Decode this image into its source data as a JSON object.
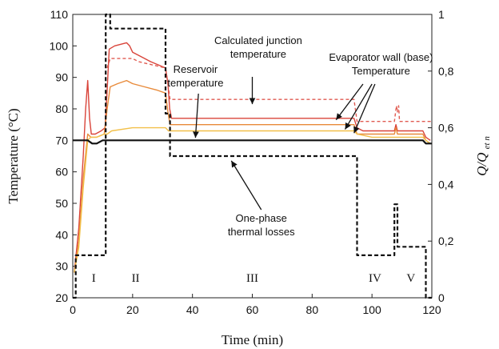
{
  "chart_data": {
    "type": "line",
    "xlabel": "Time (min)",
    "ylabel": "Temperature (°C)",
    "y2label_main": "Q/Q",
    "y2label_sub": "et n",
    "xlim": [
      0,
      120
    ],
    "ylim": [
      20,
      110
    ],
    "y2lim": [
      0,
      1
    ],
    "x_ticks": [
      "0",
      "20",
      "40",
      "60",
      "80",
      "100",
      "120"
    ],
    "y_ticks": [
      "20",
      "30",
      "40",
      "50",
      "60",
      "70",
      "80",
      "90",
      "100",
      "110"
    ],
    "y2_ticks": [
      "0",
      "0,2",
      "0,4",
      "0,6",
      "0,8",
      "1"
    ],
    "grid": false,
    "annotations": [
      {
        "id": "calc",
        "lines": [
          "Calculated junction",
          "temperature"
        ]
      },
      {
        "id": "evap",
        "lines": [
          "Evaporator wall (base)",
          "Temperature"
        ]
      },
      {
        "id": "reservoir",
        "lines": [
          "Reservoir",
          "temperature"
        ]
      },
      {
        "id": "losses",
        "lines": [
          "One-phase",
          "thermal losses"
        ]
      }
    ],
    "phases": [
      {
        "label": "I",
        "x": 7
      },
      {
        "label": "II",
        "x": 21
      },
      {
        "label": "III",
        "x": 60
      },
      {
        "label": "IV",
        "x": 101
      },
      {
        "label": "V",
        "x": 113
      }
    ],
    "series": [
      {
        "id": "evap_red",
        "color": "#d9443a",
        "dash": "",
        "x": [
          0.5,
          2,
          3.5,
          4.3,
          5,
          5.6,
          6.2,
          7.5,
          9.5,
          10.8,
          11.5,
          12.2,
          14,
          18,
          19,
          20,
          22,
          26,
          31,
          31.8,
          32.4,
          33,
          40,
          60,
          80,
          94,
          95,
          97,
          100,
          107.5,
          108,
          108.5,
          110,
          117,
          118,
          119.5
        ],
        "y": [
          28,
          42,
          65,
          80,
          89,
          77,
          72,
          72,
          73,
          74,
          86,
          99,
          100,
          101,
          100,
          98,
          97,
          95,
          93,
          88,
          80,
          77,
          77,
          77,
          77,
          77,
          74,
          73,
          73,
          73,
          75,
          73,
          73,
          73,
          71,
          70
        ]
      },
      {
        "id": "calc_dashed",
        "color": "#e05a50",
        "dash": "4,3",
        "x": [
          11.5,
          12.5,
          20,
          22,
          31,
          31.8,
          32.5,
          94,
          95,
          100,
          107.5,
          107.9,
          108.2,
          108.5,
          108.9,
          109.2,
          120
        ],
        "y": [
          93,
          96,
          96,
          95,
          93,
          88,
          83,
          83,
          76,
          76,
          76,
          79,
          81,
          79,
          81,
          76,
          76
        ]
      },
      {
        "id": "evap_orange",
        "color": "#e88a3a",
        "dash": "",
        "x": [
          0.5,
          2,
          3.5,
          5,
          6,
          8,
          10.5,
          11.5,
          12.5,
          15,
          18,
          20,
          24,
          28,
          31,
          31.8,
          32.5,
          40,
          60,
          80,
          94,
          95,
          100,
          107.5,
          108,
          108.5,
          110,
          117,
          118,
          119.5
        ],
        "y": [
          28,
          38,
          58,
          72,
          71,
          71,
          72,
          80,
          87,
          88,
          89,
          88,
          87,
          86,
          85,
          79,
          75,
          75,
          75,
          75,
          75,
          72,
          72,
          72,
          74,
          72,
          72,
          72,
          70,
          69
        ]
      },
      {
        "id": "evap_yellow",
        "color": "#f2c04a",
        "dash": "",
        "x": [
          0.5,
          2,
          3.5,
          5,
          6,
          8,
          10.5,
          11.5,
          13,
          20,
          30,
          31,
          32,
          40,
          60,
          80,
          94,
          95,
          100,
          110,
          117,
          118,
          119.5
        ],
        "y": [
          28,
          36,
          55,
          70,
          71,
          71,
          72,
          72,
          73,
          74,
          74,
          74,
          73,
          73,
          73,
          73,
          73,
          72,
          71,
          71,
          71,
          70,
          69
        ]
      },
      {
        "id": "reservoir",
        "color": "#111111",
        "dash": "",
        "width": 2.2,
        "x": [
          0,
          5,
          6.5,
          8,
          10,
          12,
          14,
          20,
          40,
          60,
          80,
          100,
          117,
          118,
          120
        ],
        "y": [
          70,
          70,
          69,
          69,
          70,
          70,
          70,
          70,
          70,
          70,
          70,
          70,
          70,
          69,
          69
        ]
      },
      {
        "id": "losses",
        "color": "#111111",
        "dash": "5,3",
        "width": 2.2,
        "axis": "right",
        "x": [
          0,
          1,
          1,
          11,
          11,
          12.5,
          12.5,
          31,
          31,
          32.5,
          32.5,
          95,
          95,
          107.5,
          107.5,
          108.5,
          108.5,
          118,
          118,
          120
        ],
        "y": [
          0,
          0,
          0.15,
          0.15,
          1,
          1,
          0.95,
          0.95,
          0.65,
          0.65,
          0.5,
          0.5,
          0.15,
          0.15,
          0.33,
          0.33,
          0.18,
          0.18,
          0,
          0
        ]
      }
    ]
  }
}
